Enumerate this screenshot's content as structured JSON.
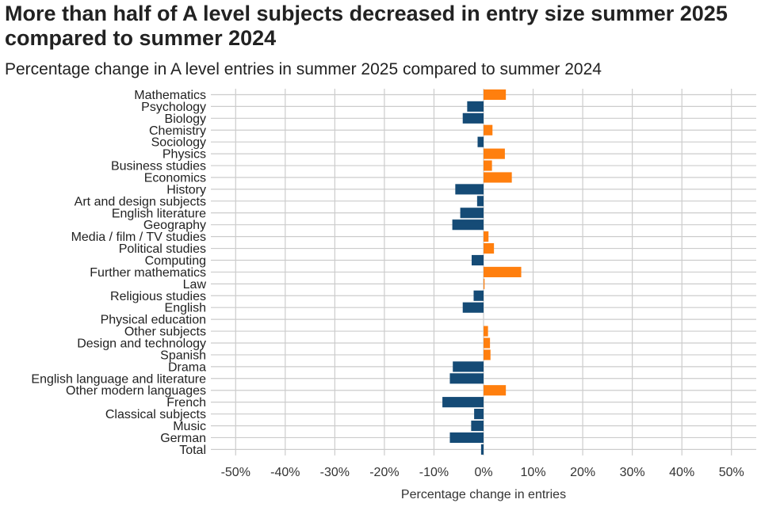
{
  "chart_data": {
    "type": "bar",
    "orientation": "horizontal",
    "title": "More than half of A level subjects decreased in entry size summer 2025 compared to summer 2024",
    "subtitle": "Percentage change in A level entries in summer 2025 compared to summer 2024",
    "xlabel": "Percentage change in entries",
    "ylabel": "",
    "xlim": [
      -55,
      55
    ],
    "xticks": [
      -50,
      -40,
      -30,
      -20,
      -10,
      0,
      10,
      20,
      30,
      40,
      50
    ],
    "xtick_labels": [
      "-50%",
      "-40%",
      "-30%",
      "-20%",
      "-10%",
      "0%",
      "10%",
      "20%",
      "30%",
      "40%",
      "50%"
    ],
    "grid": true,
    "legend": "none",
    "colors": {
      "increase": "#FF7F0E",
      "decrease": "#154B76",
      "grid": "#CCCCCC"
    },
    "categories": [
      "Mathematics",
      "Psychology",
      "Biology",
      "Chemistry",
      "Sociology",
      "Physics",
      "Business studies",
      "Economics",
      "History",
      "Art and design subjects",
      "English literature",
      "Geography",
      "Media / film / TV studies",
      "Political studies",
      "Computing",
      "Further mathematics",
      "Law",
      "Religious studies",
      "English",
      "Physical education",
      "Other subjects",
      "Design and technology",
      "Spanish",
      "Drama",
      "English language and literature",
      "Other modern languages",
      "French",
      "Classical subjects",
      "Music",
      "German",
      "Total"
    ],
    "values": [
      4.5,
      -3.3,
      -4.2,
      1.8,
      -1.2,
      4.3,
      1.7,
      5.7,
      -5.7,
      -1.3,
      -4.7,
      -6.3,
      1.0,
      2.1,
      -2.4,
      7.6,
      0.2,
      -2.0,
      -4.2,
      0.0,
      0.9,
      1.3,
      1.4,
      -6.2,
      -6.8,
      4.5,
      -8.3,
      -1.9,
      -2.5,
      -6.8,
      -0.5
    ]
  }
}
